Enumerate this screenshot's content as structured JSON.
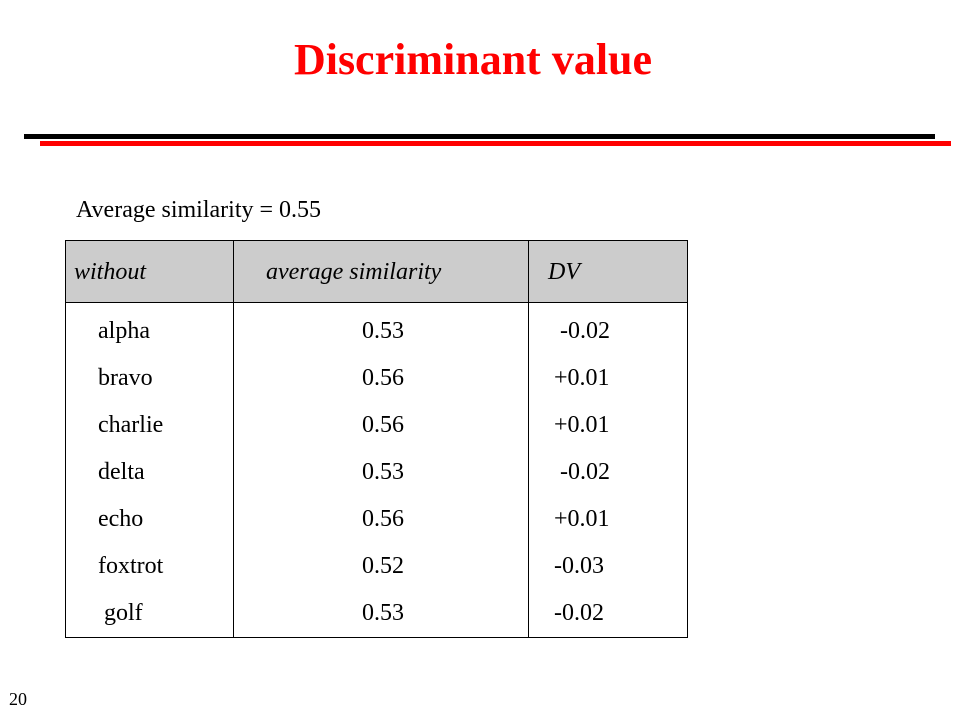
{
  "slide": {
    "title": "Discriminant value",
    "subtitle": "Average similarity = 0.55",
    "page_number": "20",
    "colors": {
      "title": "#ff0000",
      "rule_red": "#ff0000",
      "rule_black": "#000000",
      "header_bg": "#cccccc"
    }
  },
  "table": {
    "headers": [
      "without",
      "average similarity",
      "DV"
    ],
    "rows": [
      [
        "alpha",
        "0.53",
        " -0.02"
      ],
      [
        "bravo",
        "0.56",
        "+0.01"
      ],
      [
        "charlie",
        "0.56",
        "+0.01"
      ],
      [
        "delta",
        "0.53",
        " -0.02"
      ],
      [
        "echo",
        "0.56",
        "+0.01"
      ],
      [
        "foxtrot",
        "0.52",
        "-0.03"
      ],
      [
        " golf",
        "0.53",
        "-0.02"
      ]
    ]
  }
}
